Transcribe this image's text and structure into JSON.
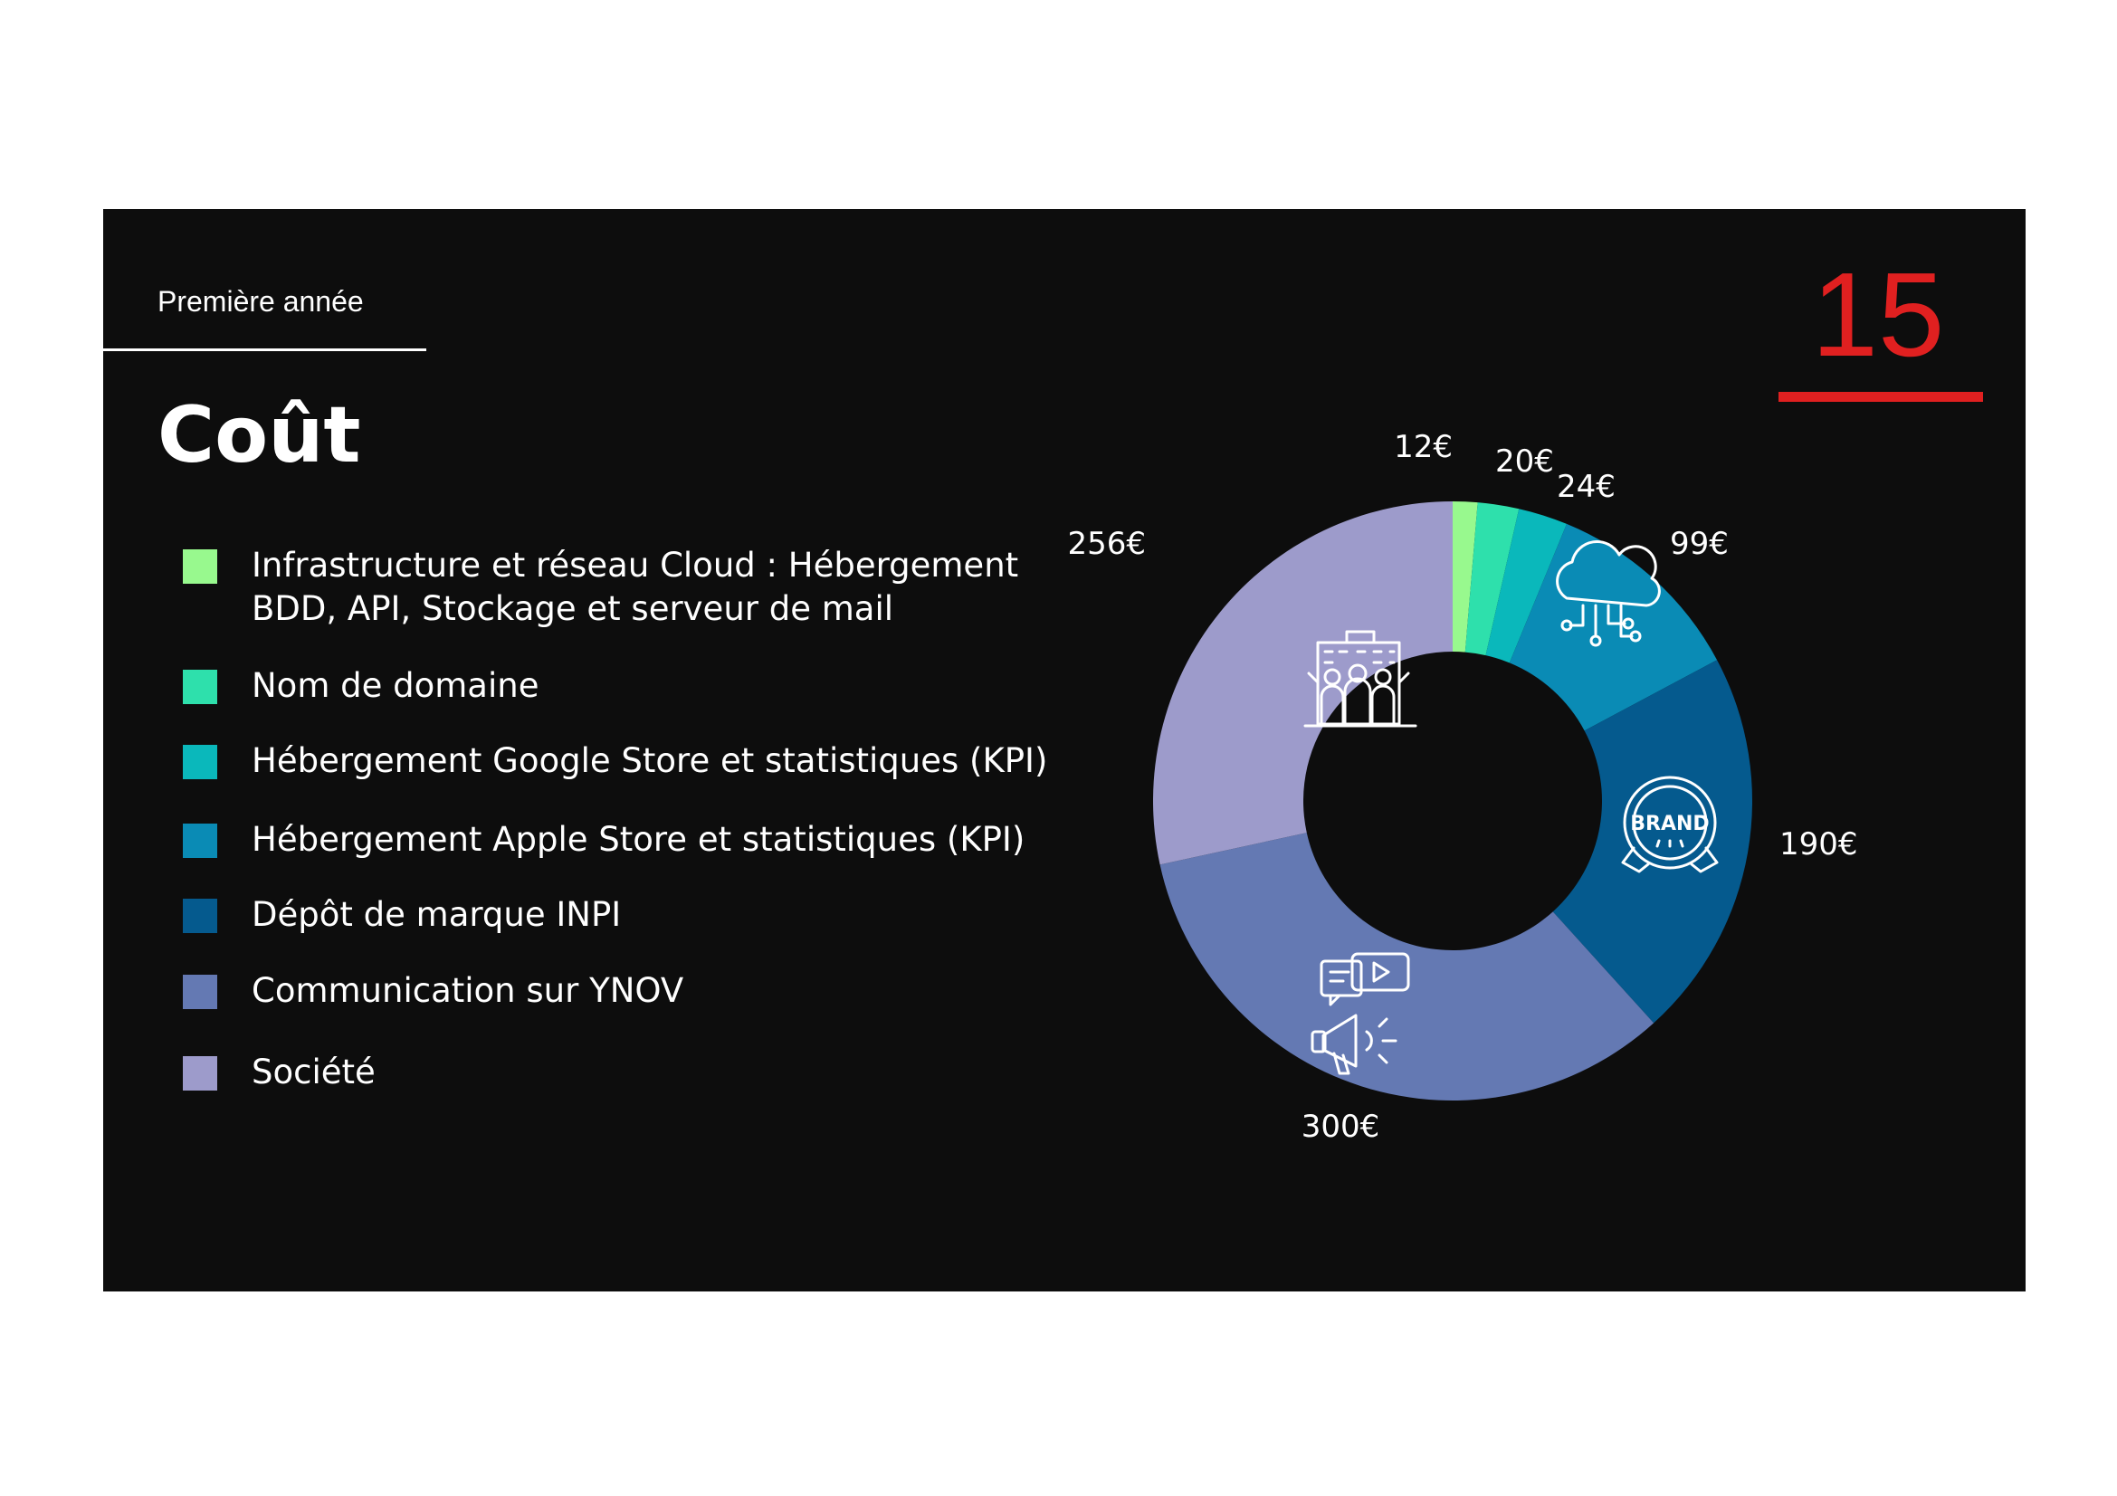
{
  "slide": {
    "section_label": "Première année",
    "page_number": "15",
    "title": "Coût",
    "accent_color": "#e02020",
    "background_color": "#0d0d0d"
  },
  "chart_data": {
    "type": "pie",
    "variant": "donut",
    "title": "",
    "categories": [
      "Infrastructure et réseau  Cloud : Hébergement BDD, API, Stockage et serveur de mail",
      "Nom de domaine",
      "Hébergement Google Store et statistiques (KPI)",
      "Hébergement Apple Store et statistiques (KPI)",
      "Dépôt de marque INPI",
      "Communication sur YNOV",
      "Société"
    ],
    "legend_lines": [
      [
        "Infrastructure et réseau  Cloud : Hébergement",
        "BDD, API, Stockage et serveur de mail"
      ],
      [
        "Nom de domaine"
      ],
      [
        "Hébergement Google Store et statistiques (KPI)"
      ],
      [
        "Hébergement Apple Store et statistiques (KPI)"
      ],
      [
        "Dépôt de marque INPI"
      ],
      [
        "Communication sur YNOV"
      ],
      [
        "Société"
      ]
    ],
    "values": [
      12,
      20,
      24,
      99,
      190,
      300,
      256
    ],
    "value_labels": [
      "12€",
      "20€",
      "24€",
      "99€",
      "190€",
      "300€",
      "256€"
    ],
    "unit": "€",
    "colors": [
      "#98f98e",
      "#2ee0ac",
      "#0ab8bb",
      "#0a8bb5",
      "#055a8e",
      "#6479b3",
      "#9d9bcb"
    ],
    "start_angle": "12 o'clock, clockwise",
    "legend_placement": "left",
    "slice_icons": [
      null,
      null,
      null,
      "cloud-network-icon",
      "brand-badge-icon",
      "megaphone-video-icon",
      "team-building-icon"
    ]
  }
}
